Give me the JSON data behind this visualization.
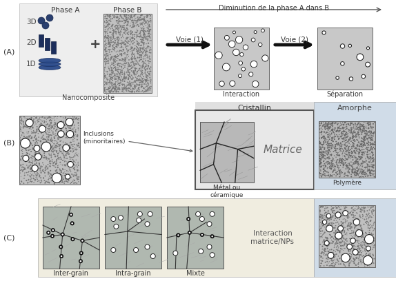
{
  "bg_color": "#ffffff",
  "label_A": "(A)",
  "label_B": "(B)",
  "label_C": "(C)",
  "phase_A_label": "Phase A",
  "phase_B_label": "Phase B",
  "nanocomposite_label": "Nanocomposite",
  "voie1_label": "Voie (1)",
  "voie2_label": "Voie (2)",
  "interaction_label": "Interaction",
  "separation_label": "Séparation",
  "diminution_label": "Diminution de la phase A dans B",
  "cristallin_label": "Cristallin",
  "amorphe_label": "Amorphe",
  "metal_label": "Métal ou\ncéramique",
  "polymere_label": "Polymère",
  "matrice_label": "Matrice",
  "inclusions_label": "Inclusions\n(minoritaires)",
  "intergrain_label": "Inter-grain",
  "intragrain_label": "Intra-grain",
  "mixte_label": "Mixte",
  "interaction_matrice_label": "Interaction\nmatrice/NPs",
  "labels_3d": "3D",
  "labels_2d": "2D",
  "labels_1d": "1D"
}
